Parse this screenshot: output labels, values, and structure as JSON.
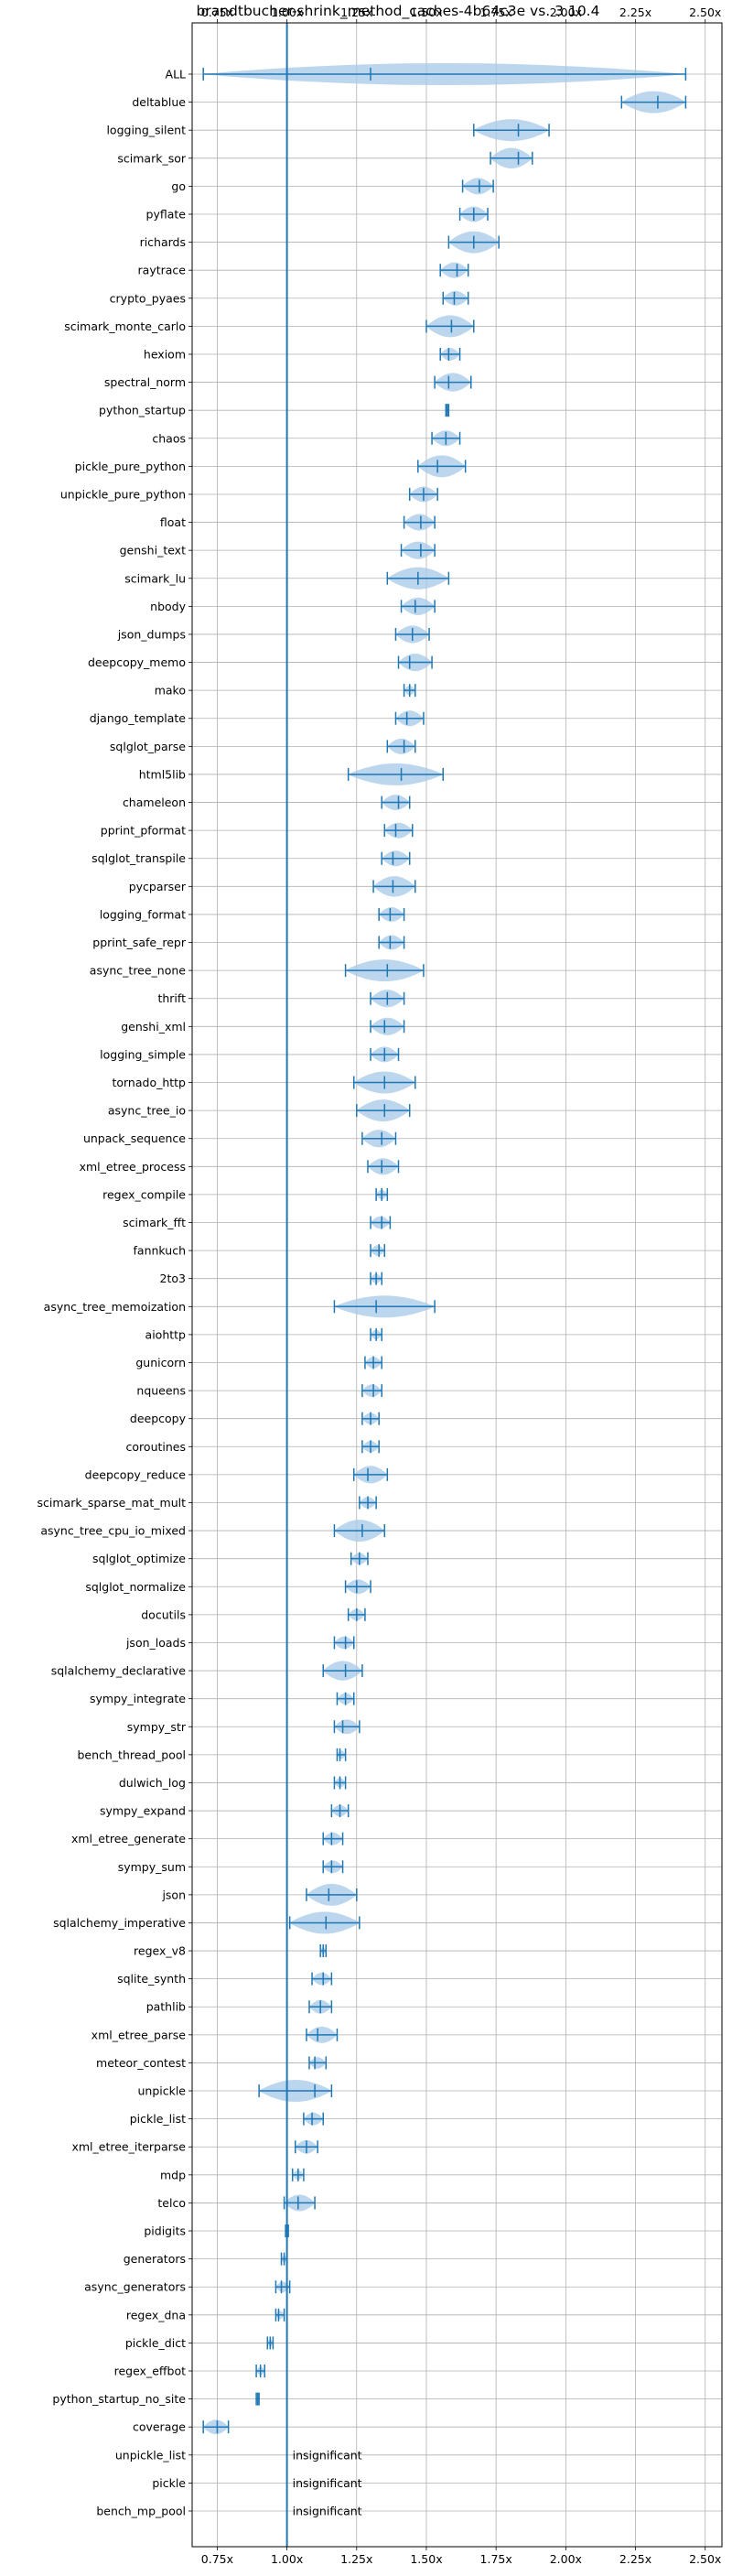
{
  "chart_data": {
    "type": "violin",
    "title": "brandtbucher-shrink_method_caches-4b64c3e vs. 3.10.4",
    "xlabel": "",
    "ylabel": "",
    "xlim": [
      0.66,
      2.56
    ],
    "x_ticks": [
      0.75,
      1.0,
      1.25,
      1.5,
      1.75,
      2.0,
      2.25,
      2.5
    ],
    "x_tick_labels": [
      "0.75x",
      "1.00x",
      "1.25x",
      "1.50x",
      "1.75x",
      "2.00x",
      "2.25x",
      "2.50x"
    ],
    "reference_line": 1.0,
    "grid": true,
    "color": "#1f77b4",
    "fill_color": "#a6c8e8",
    "benchmarks": [
      {
        "name": "ALL",
        "min": 0.7,
        "median": 1.3,
        "max": 2.43
      },
      {
        "name": "deltablue",
        "min": 2.2,
        "median": 2.33,
        "max": 2.43
      },
      {
        "name": "logging_silent",
        "min": 1.67,
        "median": 1.83,
        "max": 1.94
      },
      {
        "name": "scimark_sor",
        "min": 1.73,
        "median": 1.83,
        "max": 1.88
      },
      {
        "name": "go",
        "min": 1.63,
        "median": 1.69,
        "max": 1.74
      },
      {
        "name": "pyflate",
        "min": 1.62,
        "median": 1.67,
        "max": 1.72
      },
      {
        "name": "richards",
        "min": 1.58,
        "median": 1.67,
        "max": 1.76
      },
      {
        "name": "raytrace",
        "min": 1.55,
        "median": 1.61,
        "max": 1.65
      },
      {
        "name": "crypto_pyaes",
        "min": 1.56,
        "median": 1.6,
        "max": 1.65
      },
      {
        "name": "scimark_monte_carlo",
        "min": 1.5,
        "median": 1.59,
        "max": 1.67
      },
      {
        "name": "hexiom",
        "min": 1.55,
        "median": 1.58,
        "max": 1.62
      },
      {
        "name": "spectral_norm",
        "min": 1.53,
        "median": 1.58,
        "max": 1.66
      },
      {
        "name": "python_startup",
        "min": 1.57,
        "median": 1.575,
        "max": 1.58
      },
      {
        "name": "chaos",
        "min": 1.52,
        "median": 1.57,
        "max": 1.62
      },
      {
        "name": "pickle_pure_python",
        "min": 1.47,
        "median": 1.54,
        "max": 1.64
      },
      {
        "name": "unpickle_pure_python",
        "min": 1.44,
        "median": 1.49,
        "max": 1.54
      },
      {
        "name": "float",
        "min": 1.42,
        "median": 1.48,
        "max": 1.53
      },
      {
        "name": "genshi_text",
        "min": 1.41,
        "median": 1.48,
        "max": 1.53
      },
      {
        "name": "scimark_lu",
        "min": 1.36,
        "median": 1.47,
        "max": 1.58
      },
      {
        "name": "nbody",
        "min": 1.41,
        "median": 1.46,
        "max": 1.53
      },
      {
        "name": "json_dumps",
        "min": 1.39,
        "median": 1.45,
        "max": 1.51
      },
      {
        "name": "deepcopy_memo",
        "min": 1.4,
        "median": 1.44,
        "max": 1.52
      },
      {
        "name": "mako",
        "min": 1.42,
        "median": 1.44,
        "max": 1.46
      },
      {
        "name": "django_template",
        "min": 1.39,
        "median": 1.43,
        "max": 1.49
      },
      {
        "name": "sqlglot_parse",
        "min": 1.36,
        "median": 1.42,
        "max": 1.46
      },
      {
        "name": "html5lib",
        "min": 1.22,
        "median": 1.41,
        "max": 1.56
      },
      {
        "name": "chameleon",
        "min": 1.34,
        "median": 1.4,
        "max": 1.44
      },
      {
        "name": "pprint_pformat",
        "min": 1.35,
        "median": 1.39,
        "max": 1.45
      },
      {
        "name": "sqlglot_transpile",
        "min": 1.34,
        "median": 1.38,
        "max": 1.44
      },
      {
        "name": "pycparser",
        "min": 1.31,
        "median": 1.38,
        "max": 1.46
      },
      {
        "name": "logging_format",
        "min": 1.33,
        "median": 1.37,
        "max": 1.42
      },
      {
        "name": "pprint_safe_repr",
        "min": 1.33,
        "median": 1.37,
        "max": 1.42
      },
      {
        "name": "async_tree_none",
        "min": 1.21,
        "median": 1.36,
        "max": 1.49
      },
      {
        "name": "thrift",
        "min": 1.3,
        "median": 1.36,
        "max": 1.42
      },
      {
        "name": "genshi_xml",
        "min": 1.3,
        "median": 1.35,
        "max": 1.42
      },
      {
        "name": "logging_simple",
        "min": 1.3,
        "median": 1.35,
        "max": 1.4
      },
      {
        "name": "tornado_http",
        "min": 1.24,
        "median": 1.35,
        "max": 1.46
      },
      {
        "name": "async_tree_io",
        "min": 1.25,
        "median": 1.35,
        "max": 1.44
      },
      {
        "name": "unpack_sequence",
        "min": 1.27,
        "median": 1.34,
        "max": 1.39
      },
      {
        "name": "xml_etree_process",
        "min": 1.29,
        "median": 1.34,
        "max": 1.4
      },
      {
        "name": "regex_compile",
        "min": 1.32,
        "median": 1.34,
        "max": 1.36
      },
      {
        "name": "scimark_fft",
        "min": 1.3,
        "median": 1.34,
        "max": 1.37
      },
      {
        "name": "fannkuch",
        "min": 1.3,
        "median": 1.33,
        "max": 1.35
      },
      {
        "name": "2to3",
        "min": 1.3,
        "median": 1.32,
        "max": 1.34
      },
      {
        "name": "async_tree_memoization",
        "min": 1.17,
        "median": 1.32,
        "max": 1.53
      },
      {
        "name": "aiohttp",
        "min": 1.3,
        "median": 1.32,
        "max": 1.34
      },
      {
        "name": "gunicorn",
        "min": 1.28,
        "median": 1.31,
        "max": 1.34
      },
      {
        "name": "nqueens",
        "min": 1.27,
        "median": 1.31,
        "max": 1.34
      },
      {
        "name": "deepcopy",
        "min": 1.27,
        "median": 1.3,
        "max": 1.33
      },
      {
        "name": "coroutines",
        "min": 1.27,
        "median": 1.3,
        "max": 1.33
      },
      {
        "name": "deepcopy_reduce",
        "min": 1.24,
        "median": 1.29,
        "max": 1.36
      },
      {
        "name": "scimark_sparse_mat_mult",
        "min": 1.26,
        "median": 1.29,
        "max": 1.32
      },
      {
        "name": "async_tree_cpu_io_mixed",
        "min": 1.17,
        "median": 1.27,
        "max": 1.35
      },
      {
        "name": "sqlglot_optimize",
        "min": 1.23,
        "median": 1.26,
        "max": 1.29
      },
      {
        "name": "sqlglot_normalize",
        "min": 1.21,
        "median": 1.25,
        "max": 1.3
      },
      {
        "name": "docutils",
        "min": 1.22,
        "median": 1.25,
        "max": 1.28
      },
      {
        "name": "json_loads",
        "min": 1.17,
        "median": 1.21,
        "max": 1.24
      },
      {
        "name": "sqlalchemy_declarative",
        "min": 1.13,
        "median": 1.21,
        "max": 1.27
      },
      {
        "name": "sympy_integrate",
        "min": 1.18,
        "median": 1.21,
        "max": 1.24
      },
      {
        "name": "sympy_str",
        "min": 1.17,
        "median": 1.2,
        "max": 1.26
      },
      {
        "name": "bench_thread_pool",
        "min": 1.18,
        "median": 1.19,
        "max": 1.21
      },
      {
        "name": "dulwich_log",
        "min": 1.17,
        "median": 1.19,
        "max": 1.21
      },
      {
        "name": "sympy_expand",
        "min": 1.16,
        "median": 1.19,
        "max": 1.22
      },
      {
        "name": "xml_etree_generate",
        "min": 1.13,
        "median": 1.16,
        "max": 1.2
      },
      {
        "name": "sympy_sum",
        "min": 1.13,
        "median": 1.16,
        "max": 1.2
      },
      {
        "name": "json",
        "min": 1.07,
        "median": 1.15,
        "max": 1.25
      },
      {
        "name": "sqlalchemy_imperative",
        "min": 1.01,
        "median": 1.14,
        "max": 1.26
      },
      {
        "name": "regex_v8",
        "min": 1.12,
        "median": 1.13,
        "max": 1.14
      },
      {
        "name": "sqlite_synth",
        "min": 1.09,
        "median": 1.13,
        "max": 1.16
      },
      {
        "name": "pathlib",
        "min": 1.08,
        "median": 1.12,
        "max": 1.16
      },
      {
        "name": "xml_etree_parse",
        "min": 1.07,
        "median": 1.11,
        "max": 1.18
      },
      {
        "name": "meteor_contest",
        "min": 1.08,
        "median": 1.1,
        "max": 1.14
      },
      {
        "name": "unpickle",
        "min": 0.9,
        "median": 1.1,
        "max": 1.16
      },
      {
        "name": "pickle_list",
        "min": 1.06,
        "median": 1.09,
        "max": 1.13
      },
      {
        "name": "xml_etree_iterparse",
        "min": 1.03,
        "median": 1.07,
        "max": 1.11
      },
      {
        "name": "mdp",
        "min": 1.02,
        "median": 1.04,
        "max": 1.06
      },
      {
        "name": "telco",
        "min": 0.99,
        "median": 1.04,
        "max": 1.1
      },
      {
        "name": "pidigits",
        "min": 0.995,
        "median": 1.0,
        "max": 1.005
      },
      {
        "name": "generators",
        "min": 0.98,
        "median": 0.99,
        "max": 1.0
      },
      {
        "name": "async_generators",
        "min": 0.96,
        "median": 0.98,
        "max": 1.01
      },
      {
        "name": "regex_dna",
        "min": 0.96,
        "median": 0.97,
        "max": 0.99
      },
      {
        "name": "pickle_dict",
        "min": 0.93,
        "median": 0.94,
        "max": 0.95
      },
      {
        "name": "regex_effbot",
        "min": 0.89,
        "median": 0.905,
        "max": 0.92
      },
      {
        "name": "python_startup_no_site",
        "min": 0.89,
        "median": 0.895,
        "max": 0.9
      },
      {
        "name": "coverage",
        "min": 0.7,
        "median": 0.75,
        "max": 0.79
      },
      {
        "name": "unpickle_list",
        "insignificant": true
      },
      {
        "name": "pickle",
        "insignificant": true
      },
      {
        "name": "bench_mp_pool",
        "insignificant": true
      }
    ],
    "insignificant_label": "insignificant"
  }
}
